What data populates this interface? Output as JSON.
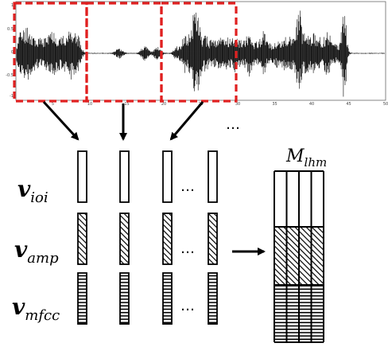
{
  "waveform": {
    "x_ticks": [
      "5",
      "10",
      "15",
      "20",
      "25",
      "30",
      "35",
      "40",
      "45",
      "50"
    ],
    "y_ticks": [
      "1",
      "0.5",
      "0",
      "-0.5",
      "-1"
    ],
    "window_color": "#e02020"
  },
  "ellipsis": "…",
  "features": [
    {
      "symbol": "v",
      "subscript": "ioi",
      "fill": "plain"
    },
    {
      "symbol": "v",
      "subscript": "amp",
      "fill": "diagonal"
    },
    {
      "symbol": "v",
      "subscript": "mfcc",
      "fill": "horizontal"
    }
  ],
  "matrix": {
    "symbol": "M",
    "subscript": "lhm"
  }
}
